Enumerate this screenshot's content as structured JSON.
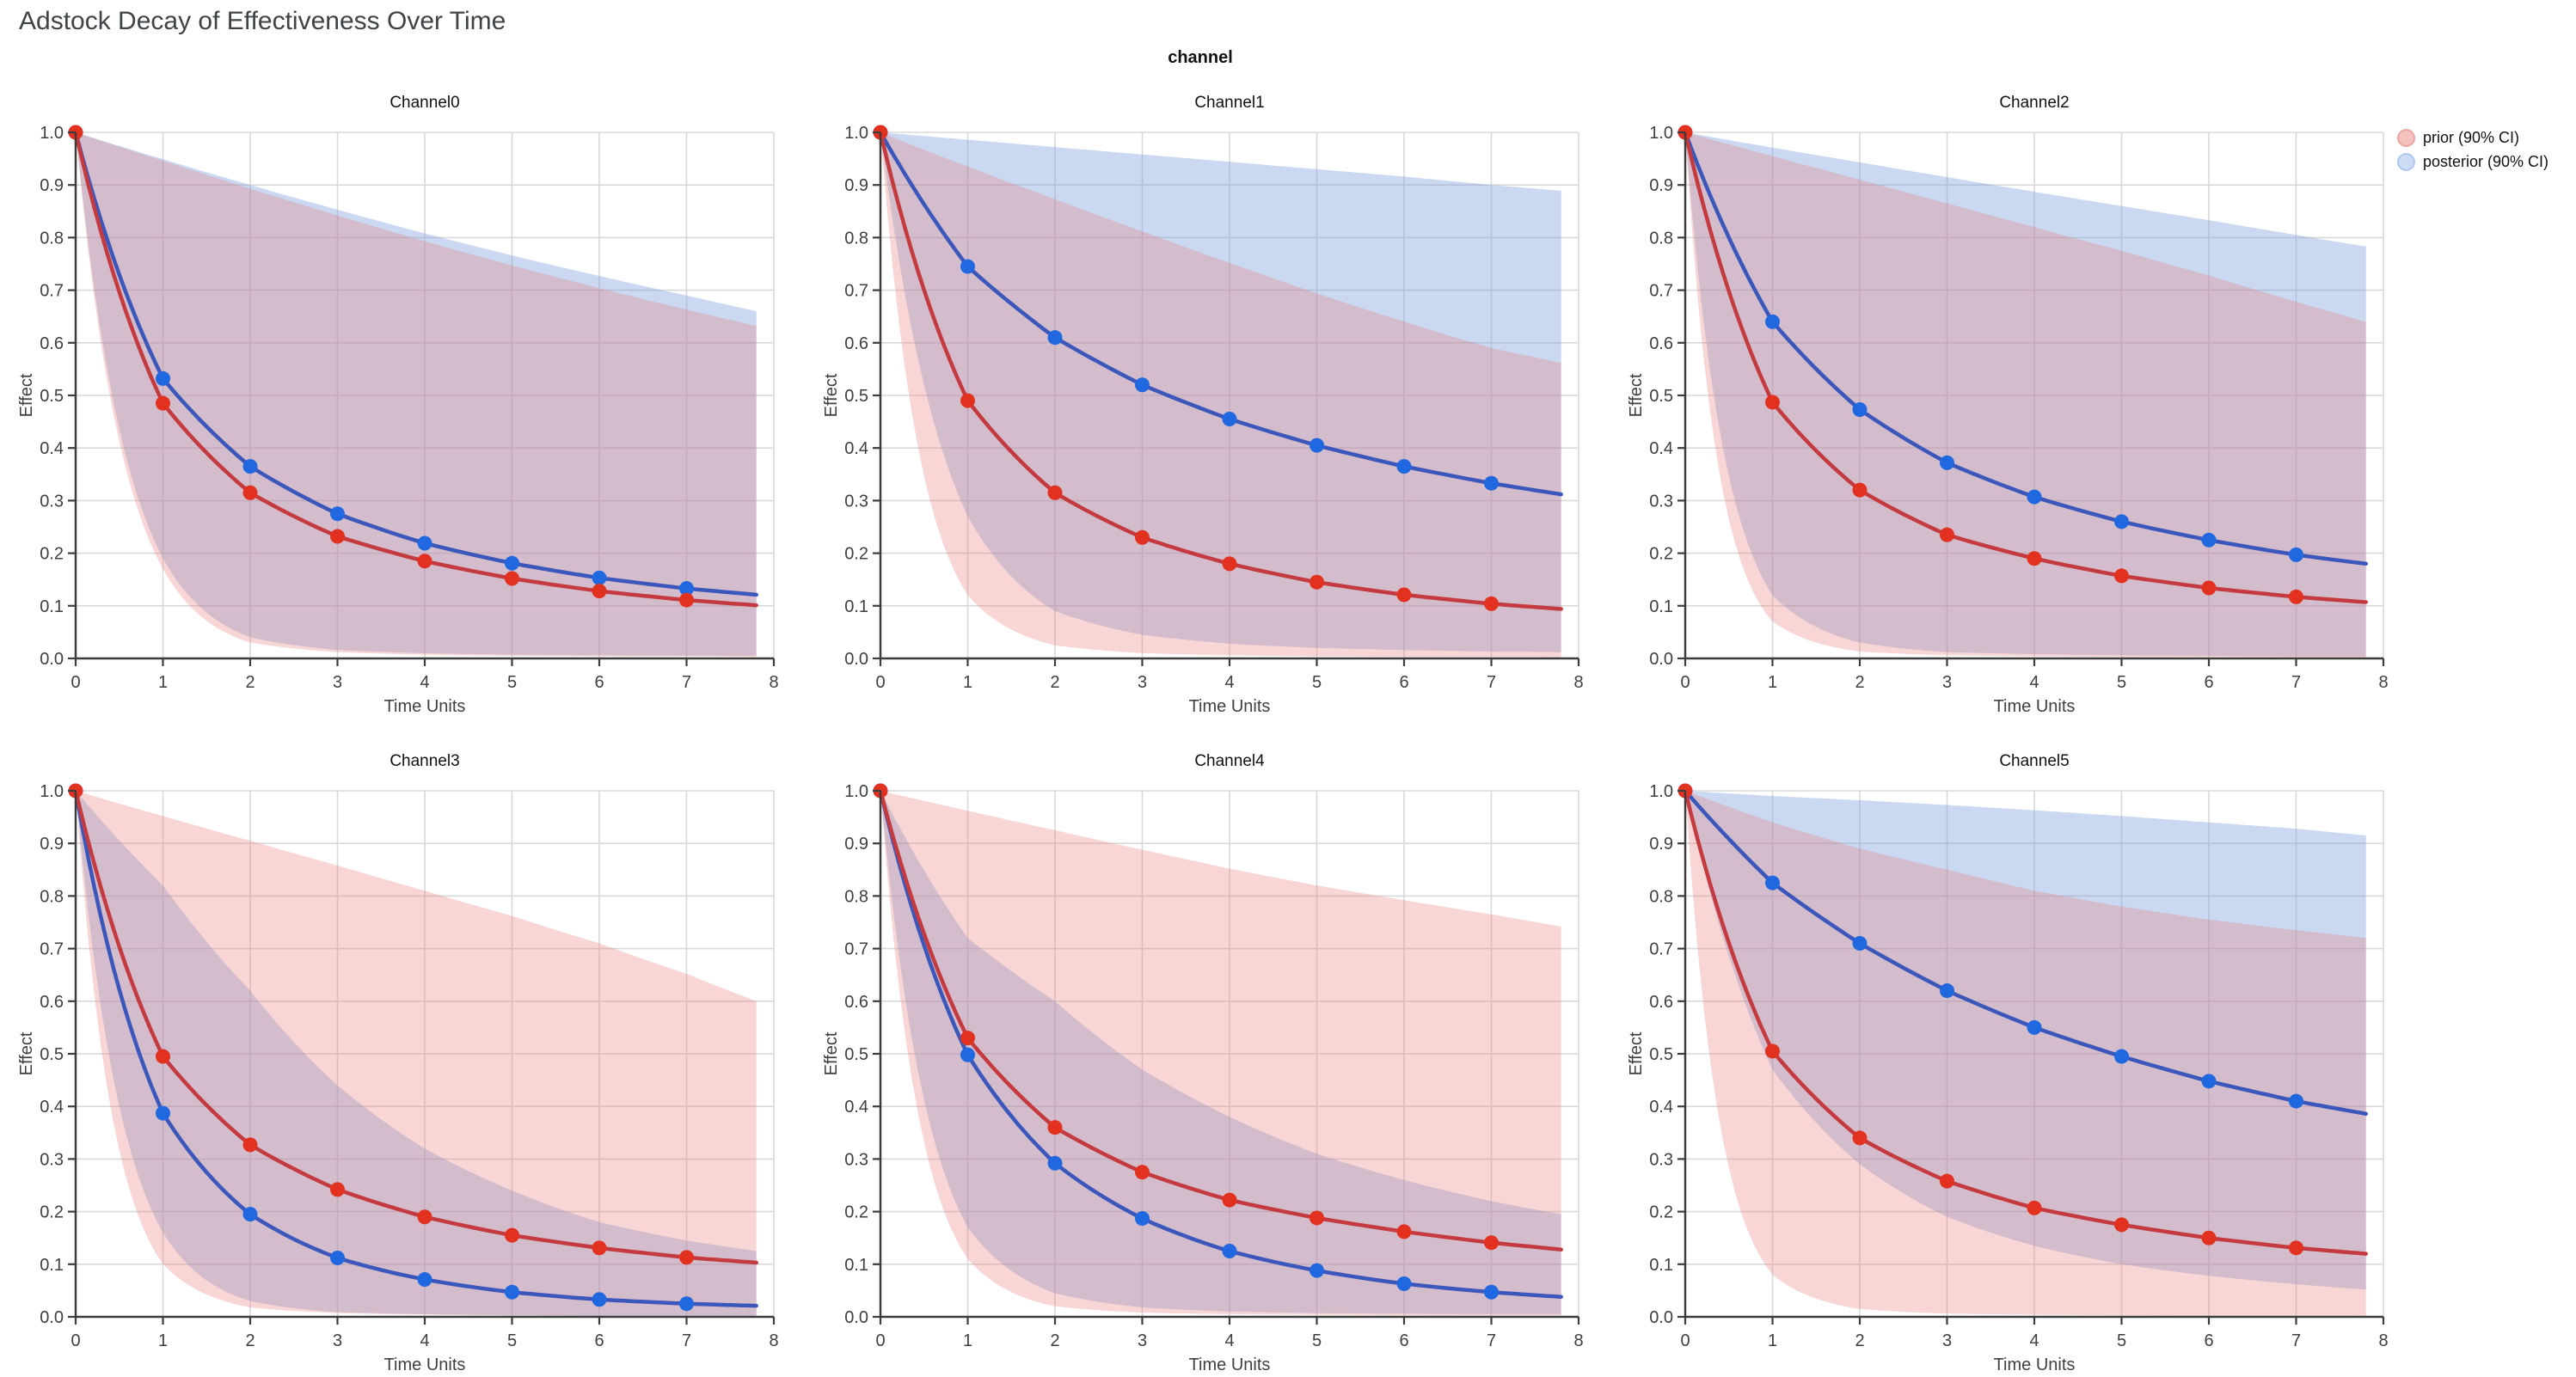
{
  "figure": {
    "title": "Adstock Decay of Effectiveness Over Time",
    "facet_label": "channel"
  },
  "legend": {
    "items": [
      {
        "label": "prior (90% CI)",
        "fill": "#f5c1bd",
        "stroke": "#eba7a4"
      },
      {
        "label": "posterior (90% CI)",
        "fill": "#ccdcf5",
        "stroke": "#aec7ee"
      }
    ]
  },
  "axes": {
    "x_label": "Time Units",
    "y_label": "Effect",
    "x_ticks": {
      "values": [
        0,
        1,
        2,
        3,
        4,
        5,
        6,
        7,
        8
      ],
      "labels": [
        "0",
        "1",
        "2",
        "3",
        "4",
        "5",
        "6",
        "7",
        "8"
      ]
    },
    "y_ticks": {
      "values": [
        0,
        0.1,
        0.2,
        0.3,
        0.4,
        0.5,
        0.6,
        0.7,
        0.8,
        0.9,
        1.0
      ],
      "labels": [
        "0.0",
        "0.1",
        "0.2",
        "0.3",
        "0.4",
        "0.5",
        "0.6",
        "0.7",
        "0.8",
        "0.9",
        "1.0"
      ]
    }
  },
  "style": {
    "grid": "#d9d9d9",
    "spine": "#3c3c3c",
    "tick_text": "#3f3f3f",
    "title_text": "#3e4347",
    "prior_line": "#c43a3e",
    "prior_marker": "#e3311f",
    "posterior_line": "#3b57bb",
    "posterior_marker": "#2068e0",
    "prior_band": "rgba(231,130,126,0.33)",
    "posterior_band": "rgba(122,158,220,0.40)"
  },
  "chart_data": {
    "type": "line",
    "title": "Adstock Decay of Effectiveness Over Time",
    "facet_label": "channel",
    "x_label": "Time Units",
    "y_label": "Effect",
    "x_range": [
      0,
      8
    ],
    "y_range": [
      0,
      1
    ],
    "grid": true,
    "legend_position": "top-right",
    "series_legend": [
      "prior (90% CI)",
      "posterior (90% CI)"
    ],
    "marker_x": [
      0,
      1,
      2,
      3,
      4,
      5,
      6,
      7
    ],
    "sample_x": [
      0,
      1,
      2,
      3,
      4,
      5,
      6,
      7,
      7.8
    ],
    "channels": [
      {
        "title": "Channel0",
        "prior_mean": [
          1.0,
          0.485,
          0.315,
          0.232,
          0.185,
          0.152,
          0.128,
          0.111,
          0.101
        ],
        "posterior_mean": [
          1.0,
          0.532,
          0.365,
          0.275,
          0.219,
          0.181,
          0.153,
          0.133,
          0.121
        ],
        "prior_ci_high": [
          1.0,
          0.946,
          0.893,
          0.842,
          0.793,
          0.747,
          0.704,
          0.663,
          0.632
        ],
        "prior_ci_low": [
          1.0,
          0.17,
          0.03,
          0.012,
          0.007,
          0.005,
          0.004,
          0.004,
          0.003
        ],
        "posterior_ci_high": [
          1.0,
          0.949,
          0.9,
          0.853,
          0.808,
          0.766,
          0.727,
          0.69,
          0.66
        ],
        "posterior_ci_low": [
          1.0,
          0.19,
          0.04,
          0.016,
          0.01,
          0.007,
          0.006,
          0.005,
          0.005
        ]
      },
      {
        "title": "Channel1",
        "prior_mean": [
          1.0,
          0.49,
          0.315,
          0.23,
          0.18,
          0.145,
          0.121,
          0.104,
          0.094
        ],
        "posterior_mean": [
          1.0,
          0.745,
          0.61,
          0.52,
          0.455,
          0.405,
          0.365,
          0.333,
          0.312
        ],
        "prior_ci_high": [
          1.0,
          0.935,
          0.873,
          0.812,
          0.752,
          0.694,
          0.64,
          0.59,
          0.562
        ],
        "prior_ci_low": [
          1.0,
          0.12,
          0.025,
          0.01,
          0.006,
          0.004,
          0.003,
          0.003,
          0.002
        ],
        "posterior_ci_high": [
          1.0,
          0.986,
          0.972,
          0.958,
          0.944,
          0.93,
          0.916,
          0.9,
          0.889
        ],
        "posterior_ci_low": [
          1.0,
          0.27,
          0.09,
          0.045,
          0.028,
          0.02,
          0.016,
          0.013,
          0.012
        ]
      },
      {
        "title": "Channel2",
        "prior_mean": [
          1.0,
          0.487,
          0.32,
          0.235,
          0.19,
          0.157,
          0.134,
          0.117,
          0.107
        ],
        "posterior_mean": [
          1.0,
          0.64,
          0.473,
          0.372,
          0.307,
          0.26,
          0.225,
          0.197,
          0.18
        ],
        "prior_ci_high": [
          1.0,
          0.955,
          0.91,
          0.865,
          0.82,
          0.775,
          0.728,
          0.678,
          0.64
        ],
        "prior_ci_low": [
          1.0,
          0.07,
          0.013,
          0.006,
          0.004,
          0.003,
          0.003,
          0.002,
          0.002
        ],
        "posterior_ci_high": [
          1.0,
          0.971,
          0.943,
          0.915,
          0.887,
          0.86,
          0.833,
          0.805,
          0.783
        ],
        "posterior_ci_low": [
          1.0,
          0.12,
          0.03,
          0.012,
          0.008,
          0.006,
          0.005,
          0.004,
          0.004
        ]
      },
      {
        "title": "Channel3",
        "prior_mean": [
          1.0,
          0.495,
          0.327,
          0.242,
          0.19,
          0.155,
          0.131,
          0.113,
          0.103
        ],
        "posterior_mean": [
          1.0,
          0.387,
          0.195,
          0.112,
          0.071,
          0.047,
          0.033,
          0.025,
          0.021
        ],
        "prior_ci_high": [
          1.0,
          0.952,
          0.905,
          0.858,
          0.81,
          0.762,
          0.71,
          0.652,
          0.6
        ],
        "prior_ci_low": [
          1.0,
          0.1,
          0.018,
          0.007,
          0.004,
          0.003,
          0.002,
          0.002,
          0.002
        ],
        "posterior_ci_high": [
          1.0,
          0.82,
          0.62,
          0.44,
          0.32,
          0.24,
          0.18,
          0.145,
          0.125
        ],
        "posterior_ci_low": [
          1.0,
          0.16,
          0.03,
          0.009,
          0.005,
          0.003,
          0.002,
          0.002,
          0.002
        ]
      },
      {
        "title": "Channel4",
        "prior_mean": [
          1.0,
          0.53,
          0.36,
          0.275,
          0.222,
          0.188,
          0.162,
          0.141,
          0.128
        ],
        "posterior_mean": [
          1.0,
          0.498,
          0.292,
          0.187,
          0.125,
          0.088,
          0.063,
          0.047,
          0.038
        ],
        "prior_ci_high": [
          1.0,
          0.962,
          0.925,
          0.888,
          0.852,
          0.82,
          0.792,
          0.765,
          0.742
        ],
        "prior_ci_low": [
          1.0,
          0.11,
          0.02,
          0.008,
          0.005,
          0.004,
          0.003,
          0.003,
          0.003
        ],
        "posterior_ci_high": [
          1.0,
          0.72,
          0.6,
          0.47,
          0.38,
          0.31,
          0.26,
          0.22,
          0.195
        ],
        "posterior_ci_low": [
          1.0,
          0.17,
          0.045,
          0.018,
          0.01,
          0.007,
          0.006,
          0.005,
          0.005
        ]
      },
      {
        "title": "Channel5",
        "prior_mean": [
          1.0,
          0.505,
          0.34,
          0.258,
          0.207,
          0.175,
          0.15,
          0.131,
          0.12
        ],
        "posterior_mean": [
          1.0,
          0.825,
          0.71,
          0.62,
          0.55,
          0.495,
          0.448,
          0.41,
          0.386
        ],
        "prior_ci_high": [
          1.0,
          0.94,
          0.89,
          0.85,
          0.81,
          0.78,
          0.755,
          0.735,
          0.72
        ],
        "prior_ci_low": [
          1.0,
          0.08,
          0.015,
          0.006,
          0.004,
          0.003,
          0.002,
          0.002,
          0.002
        ],
        "posterior_ci_high": [
          1.0,
          0.99,
          0.982,
          0.973,
          0.963,
          0.952,
          0.94,
          0.928,
          0.915
        ],
        "posterior_ci_low": [
          1.0,
          0.47,
          0.29,
          0.19,
          0.135,
          0.1,
          0.078,
          0.062,
          0.052
        ]
      }
    ]
  }
}
